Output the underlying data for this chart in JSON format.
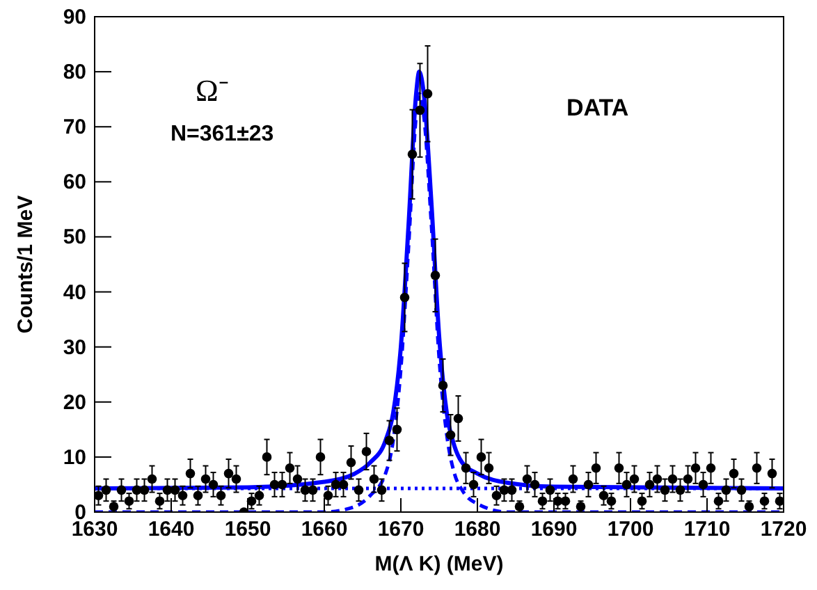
{
  "chart_data": {
    "type": "scatter",
    "xlabel": "M(Λ K) (MeV)",
    "ylabel": "Counts/1 MeV",
    "xlim": [
      1630,
      1720
    ],
    "ylim": [
      0,
      90
    ],
    "xticks": [
      1630,
      1640,
      1650,
      1660,
      1670,
      1680,
      1690,
      1700,
      1710,
      1720
    ],
    "yticks": [
      0,
      10,
      20,
      30,
      40,
      50,
      60,
      70,
      80,
      90
    ],
    "grid": false,
    "annotations": [
      "Ω⁻",
      "N=361±23",
      "DATA"
    ],
    "series": [
      {
        "type": "line",
        "color": "#0000ff",
        "line_style": "dotted",
        "marker": "none",
        "x": [
          1630,
          1720
        ],
        "values": [
          4.3,
          4.3
        ]
      },
      {
        "type": "line",
        "color": "#0000ff",
        "line_style": "dashed",
        "marker": "none",
        "x": [
          1630,
          1660,
          1664,
          1666,
          1668,
          1669,
          1670,
          1671,
          1672,
          1672.4,
          1673,
          1674,
          1675,
          1676,
          1677,
          1678,
          1680,
          1684,
          1720
        ],
        "values": [
          0,
          0,
          1,
          3,
          7,
          13,
          26,
          48,
          72,
          76,
          72,
          52,
          28,
          14,
          7,
          4,
          1.5,
          0,
          0
        ]
      },
      {
        "type": "line",
        "color": "#0000ff",
        "line_style": "solid",
        "marker": "none",
        "x": [
          1630,
          1650,
          1660,
          1664,
          1666,
          1668,
          1669,
          1670,
          1671,
          1672,
          1672.4,
          1673,
          1674,
          1675,
          1676,
          1677,
          1678,
          1680,
          1684,
          1690,
          1720
        ],
        "values": [
          4.3,
          4.5,
          5.5,
          7,
          9,
          13,
          18,
          30,
          52,
          76,
          80,
          76,
          56,
          32,
          18,
          12,
          9,
          7,
          5.3,
          4.6,
          4.3
        ]
      },
      {
        "color": "#000000",
        "marker": "circle",
        "x": [
          1630.5,
          1631.5,
          1632.5,
          1633.5,
          1634.5,
          1635.5,
          1636.5,
          1637.5,
          1638.5,
          1639.5,
          1640.5,
          1641.5,
          1642.5,
          1643.5,
          1644.5,
          1645.5,
          1646.5,
          1647.5,
          1648.5,
          1649.5,
          1650.5,
          1651.5,
          1652.5,
          1653.5,
          1654.5,
          1655.5,
          1656.5,
          1657.5,
          1658.5,
          1659.5,
          1660.5,
          1661.5,
          1662.5,
          1663.5,
          1664.5,
          1665.5,
          1666.5,
          1667.5,
          1668.5,
          1669.5,
          1670.5,
          1671.5,
          1672.5,
          1673.5,
          1674.5,
          1675.5,
          1676.5,
          1677.5,
          1678.5,
          1679.5,
          1680.5,
          1681.5,
          1682.5,
          1683.5,
          1684.5,
          1685.5,
          1686.5,
          1687.5,
          1688.5,
          1689.5,
          1690.5,
          1691.5,
          1692.5,
          1693.5,
          1694.5,
          1695.5,
          1696.5,
          1697.5,
          1698.5,
          1699.5,
          1700.5,
          1701.5,
          1702.5,
          1703.5,
          1704.5,
          1705.5,
          1706.5,
          1707.5,
          1708.5,
          1709.5,
          1710.5,
          1711.5,
          1712.5,
          1713.5,
          1714.5,
          1715.5,
          1716.5,
          1717.5,
          1718.5,
          1719.5
        ],
        "values": [
          3,
          4,
          1,
          4,
          2,
          4,
          4,
          6,
          2,
          4,
          4,
          3,
          7,
          3,
          6,
          5,
          3,
          7,
          6,
          0,
          2,
          3,
          10,
          5,
          5,
          8,
          6,
          4,
          4,
          10,
          3,
          5,
          5,
          9,
          4,
          11,
          6,
          4,
          13,
          15,
          39,
          65,
          73,
          76,
          43,
          23,
          14,
          17,
          8,
          5,
          10,
          8,
          3,
          4,
          4,
          1,
          6,
          5,
          2,
          4,
          2,
          2,
          6,
          1,
          5,
          8,
          3,
          2,
          8,
          5,
          6,
          2,
          5,
          6,
          4,
          6,
          4,
          6,
          8,
          5,
          8,
          2,
          4,
          7,
          4,
          1,
          8,
          2,
          7,
          2
        ],
        "errors": [
          1.7,
          2,
          1,
          2,
          1.4,
          2,
          2,
          2.4,
          1.4,
          2,
          2,
          1.7,
          2.6,
          1.7,
          2.4,
          2.2,
          1.7,
          2.6,
          2.4,
          null,
          1.4,
          1.7,
          3.2,
          2.2,
          2.2,
          2.8,
          2.4,
          2,
          2,
          3.2,
          1.7,
          2.2,
          2.2,
          3,
          2,
          3.3,
          2.4,
          2,
          3.6,
          3.9,
          6.2,
          8.1,
          8.5,
          8.7,
          6.6,
          4.8,
          3.7,
          4.1,
          2.8,
          2.2,
          3.2,
          2.8,
          1.7,
          2,
          2,
          1,
          2.4,
          2.2,
          1.4,
          2,
          1.4,
          1.4,
          2.4,
          1,
          2.2,
          2.8,
          1.7,
          1.4,
          2.8,
          2.2,
          2.4,
          1.4,
          2.2,
          2.4,
          2,
          2.4,
          2,
          2.4,
          2.8,
          2.2,
          2.8,
          1.4,
          2,
          2.6,
          2,
          1,
          2.8,
          1.4,
          2.6,
          1.4
        ]
      }
    ]
  }
}
